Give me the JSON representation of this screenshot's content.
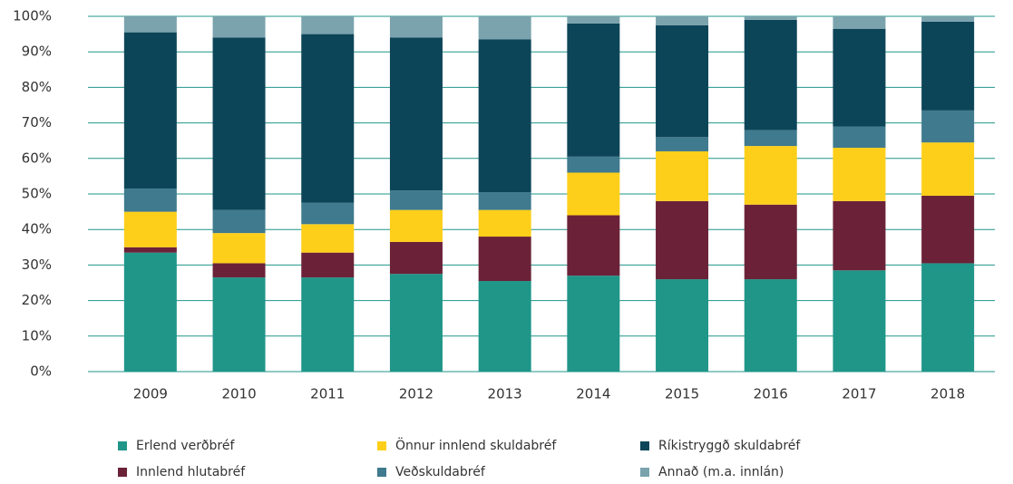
{
  "chart_data": {
    "type": "stacked_bar",
    "categories": [
      "2009",
      "2010",
      "2011",
      "2012",
      "2013",
      "2014",
      "2015",
      "2016",
      "2017",
      "2018"
    ],
    "series": [
      {
        "name": "Erlend verðbréf",
        "color": "#1f9688",
        "values": [
          33.5,
          26.5,
          26.5,
          27.5,
          25.5,
          27,
          26,
          26,
          28.5,
          30.5
        ]
      },
      {
        "name": "Innlend hlutabréf",
        "color": "#6b2238",
        "values": [
          1.5,
          4,
          7,
          9,
          12.5,
          17,
          22,
          21,
          19.5,
          19
        ]
      },
      {
        "name": "Önnur innlend skuldabréf",
        "color": "#fdcf1a",
        "values": [
          10,
          8.5,
          8,
          9,
          7.5,
          12,
          14,
          16.5,
          15,
          15
        ]
      },
      {
        "name": "Veðskuldabréf",
        "color": "#3f7a8e",
        "values": [
          6.5,
          6.5,
          6,
          5.5,
          5,
          4.5,
          4,
          4.5,
          6,
          9
        ]
      },
      {
        "name": "Ríkistryggð skuldabréf",
        "color": "#0d4558",
        "values": [
          44,
          48.5,
          47.5,
          43,
          43,
          37.5,
          31.5,
          31,
          27.5,
          25
        ]
      },
      {
        "name": "Annað (m.a. innlán)",
        "color": "#7aa3ad",
        "values": [
          4.5,
          6,
          5,
          6,
          6.5,
          2,
          2.5,
          1,
          3.5,
          1.5
        ]
      }
    ],
    "ylim": [
      0,
      100
    ],
    "yticks": [
      {
        "value": 0,
        "label": "0%"
      },
      {
        "value": 10,
        "label": "10%"
      },
      {
        "value": 20,
        "label": "20%"
      },
      {
        "value": 30,
        "label": "30%"
      },
      {
        "value": 40,
        "label": "40%"
      },
      {
        "value": 50,
        "label": "50%"
      },
      {
        "value": 60,
        "label": "60%"
      },
      {
        "value": 70,
        "label": "70%"
      },
      {
        "value": 80,
        "label": "80%"
      },
      {
        "value": 90,
        "label": "90%"
      },
      {
        "value": 100,
        "label": "100%"
      }
    ],
    "grid": true
  }
}
